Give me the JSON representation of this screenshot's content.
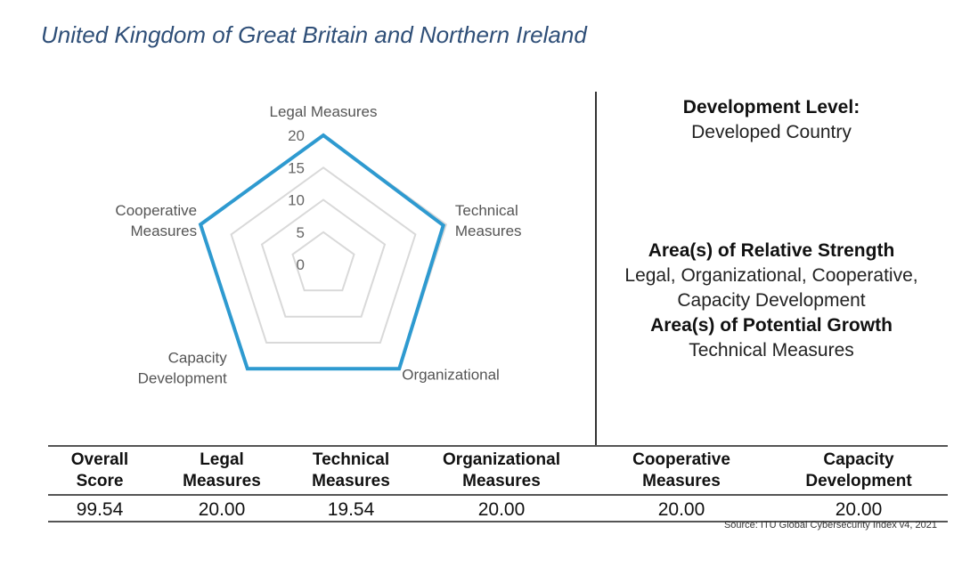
{
  "title": "United Kingdom of Great Britain and Northern Ireland",
  "chart_data": {
    "type": "radar",
    "axes": [
      "Legal Measures",
      "Technical\nMeasures",
      "Organizational",
      "Capacity\nDevelopment",
      "Cooperative\nMeasures"
    ],
    "values": [
      20.0,
      19.54,
      20.0,
      20.0,
      20.0
    ],
    "range": [
      0,
      20
    ],
    "ticks": [
      0,
      5,
      10,
      15,
      20
    ],
    "series_color": "#2e9ad0",
    "grid_color": "#d9d9d9"
  },
  "info": {
    "development_heading": "Development Level:",
    "development_value": "Developed Country",
    "strength_heading": "Area(s) of Relative Strength",
    "strength_line1": "Legal, Organizational, Cooperative,",
    "strength_line2": "Capacity Development",
    "growth_heading": "Area(s) of Potential Growth",
    "growth_value": "Technical Measures"
  },
  "table": {
    "headers": [
      [
        "Overall",
        "Score"
      ],
      [
        "Legal",
        "Measures"
      ],
      [
        "Technical",
        "Measures"
      ],
      [
        "Organizational",
        "Measures"
      ],
      [
        "Cooperative",
        "Measures"
      ],
      [
        "Capacity",
        "Development"
      ]
    ],
    "values": [
      "99.54",
      "20.00",
      "19.54",
      "20.00",
      "20.00",
      "20.00"
    ]
  },
  "source": "Source: ITU Global Cybersecurity Index v4, 2021"
}
